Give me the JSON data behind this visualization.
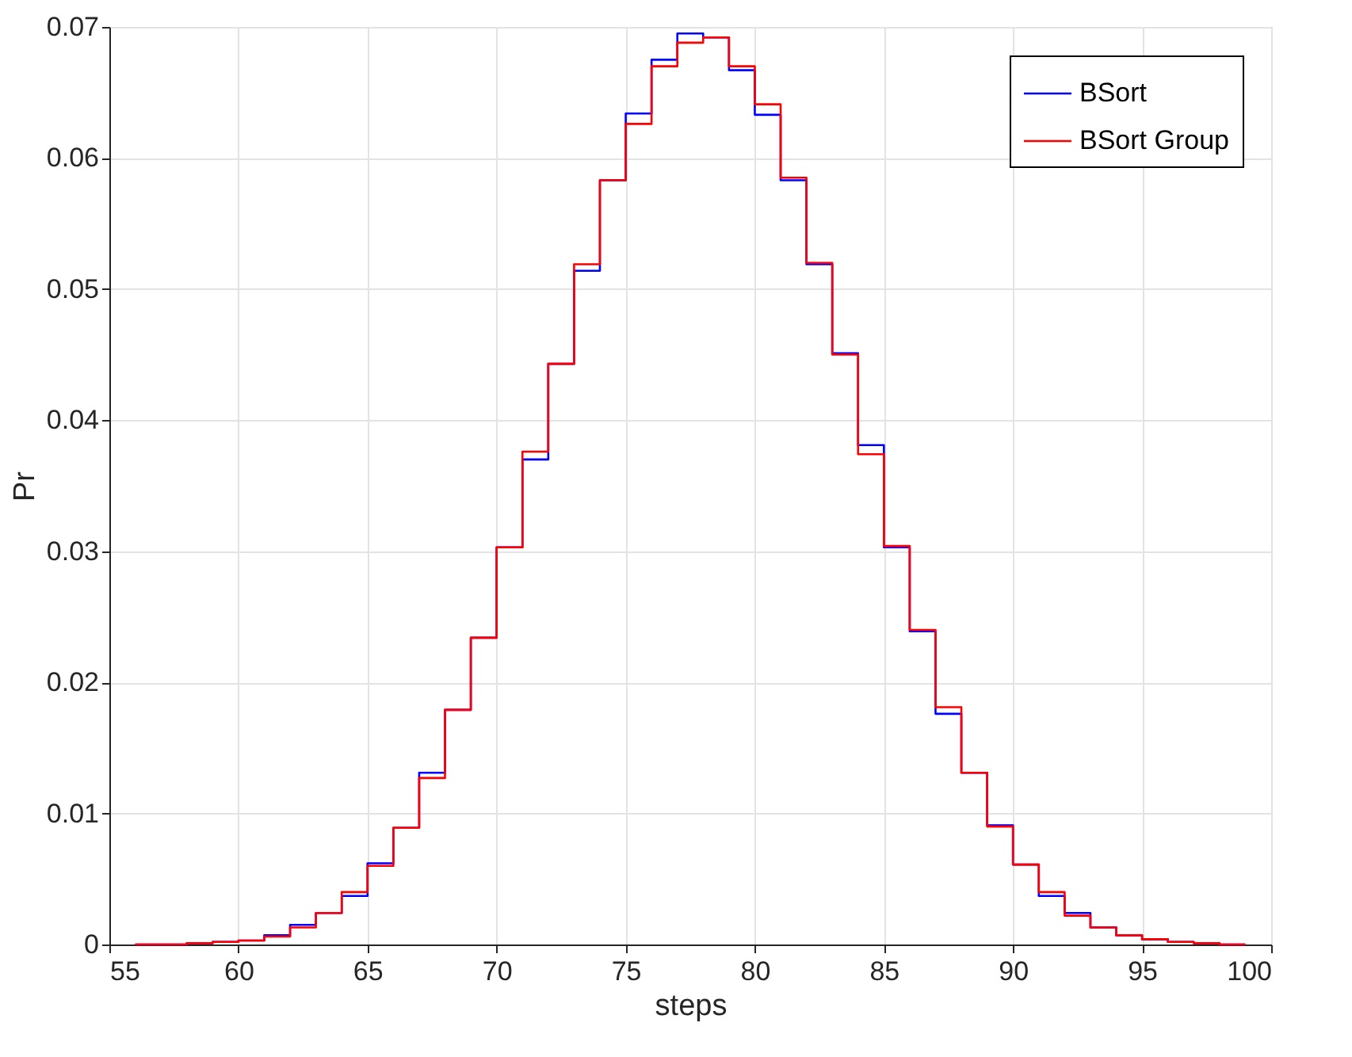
{
  "chart_data": {
    "type": "histogram",
    "xlabel": "steps",
    "ylabel": "Pr",
    "bins": [
      56,
      57,
      58,
      59,
      60,
      61,
      62,
      63,
      64,
      65,
      66,
      67,
      68,
      69,
      70,
      71,
      72,
      73,
      74,
      75,
      76,
      77,
      78,
      79,
      80,
      81,
      82,
      83,
      84,
      85,
      86,
      87,
      88,
      89,
      90,
      91,
      92,
      93,
      94,
      95,
      96,
      97,
      98,
      99
    ],
    "series": [
      {
        "name": "BSort",
        "color": "#0000ff",
        "values": [
          0,
          0,
          0.0001,
          0.0002,
          0.0003,
          0.0007,
          0.0015,
          0.0024,
          0.0037,
          0.0062,
          0.0089,
          0.0131,
          0.0179,
          0.0234,
          0.0303,
          0.037,
          0.0443,
          0.0514,
          0.0583,
          0.0634,
          0.0675,
          0.0695,
          0.0692,
          0.0667,
          0.0633,
          0.0583,
          0.0519,
          0.0451,
          0.0381,
          0.0303,
          0.0239,
          0.0176,
          0.0131,
          0.0091,
          0.0061,
          0.0037,
          0.0024,
          0.0013,
          0.0007,
          0.0004,
          0.0002,
          0.0001,
          0
        ]
      },
      {
        "name": "BSort Group",
        "color": "#ff0000",
        "values": [
          0,
          0,
          0.0001,
          0.0002,
          0.0003,
          0.0006,
          0.0013,
          0.0024,
          0.004,
          0.006,
          0.0089,
          0.0127,
          0.0179,
          0.0234,
          0.0303,
          0.0376,
          0.0443,
          0.0519,
          0.0583,
          0.0626,
          0.067,
          0.0688,
          0.0692,
          0.067,
          0.0641,
          0.0585,
          0.052,
          0.045,
          0.0374,
          0.0304,
          0.024,
          0.0181,
          0.0131,
          0.009,
          0.0061,
          0.004,
          0.0022,
          0.0013,
          0.0007,
          0.0004,
          0.0002,
          0.0001,
          0
        ]
      }
    ],
    "xlim": [
      55,
      100
    ],
    "xticks": [
      55,
      60,
      65,
      70,
      75,
      80,
      85,
      90,
      95,
      100
    ],
    "ylim": [
      0,
      0.07
    ],
    "yticks": [
      0,
      0.01,
      0.02,
      0.03,
      0.04,
      0.05,
      0.06,
      0.07
    ],
    "grid": true,
    "legend": "top right"
  }
}
